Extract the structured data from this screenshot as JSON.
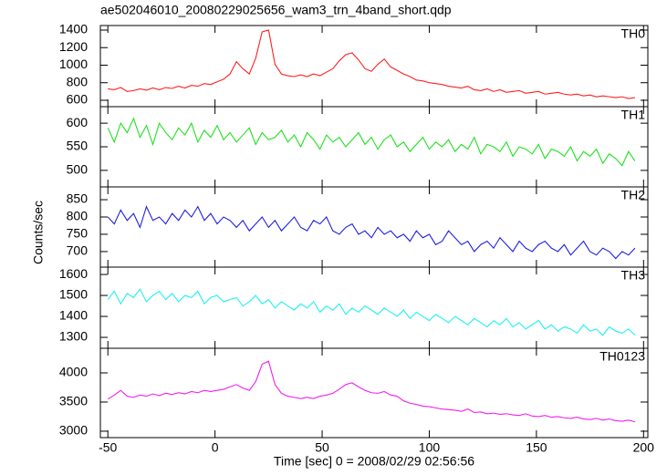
{
  "chart_data": {
    "type": "line",
    "title": "ae502046010_20080229025656_wam3_trn_4band_short.qdp",
    "x_label": "Time [sec] 0 = 2008/02/29 02:56:56",
    "y_label": "Counts/sec",
    "xlim": [
      -53.5,
      202
    ],
    "xticks": [
      -50,
      0,
      50,
      100,
      150,
      200
    ],
    "x": [
      -50,
      -47,
      -44,
      -41,
      -38,
      -35,
      -32,
      -29,
      -26,
      -23,
      -20,
      -17,
      -14,
      -11,
      -8,
      -5,
      -2,
      1,
      4,
      7,
      10,
      13,
      16,
      19,
      22,
      25,
      28,
      31,
      34,
      37,
      40,
      43,
      46,
      49,
      52,
      55,
      58,
      61,
      64,
      67,
      70,
      73,
      76,
      79,
      82,
      85,
      88,
      91,
      94,
      97,
      100,
      103,
      106,
      109,
      112,
      115,
      118,
      121,
      124,
      127,
      130,
      133,
      136,
      139,
      142,
      145,
      148,
      151,
      154,
      157,
      160,
      163,
      166,
      169,
      172,
      175,
      178,
      181,
      184,
      187,
      190,
      193,
      196
    ],
    "series": [
      {
        "name": "TH0",
        "color": "#ff2020",
        "ylim": [
          527,
          1452
        ],
        "yticks": [
          600,
          800,
          1000,
          1200,
          1400
        ],
        "values": [
          730,
          720,
          745,
          700,
          710,
          730,
          715,
          740,
          720,
          745,
          735,
          760,
          740,
          770,
          760,
          790,
          780,
          810,
          840,
          900,
          1040,
          960,
          900,
          1080,
          1380,
          1400,
          1010,
          900,
          880,
          870,
          890,
          870,
          900,
          880,
          920,
          960,
          1050,
          1120,
          1140,
          1060,
          960,
          930,
          1010,
          1070,
          980,
          940,
          900,
          870,
          830,
          820,
          800,
          790,
          780,
          760,
          750,
          740,
          760,
          720,
          710,
          730,
          700,
          720,
          690,
          700,
          710,
          680,
          690,
          700,
          670,
          680,
          690,
          670,
          660,
          670,
          650,
          660,
          640,
          650,
          640,
          630,
          640,
          620,
          630
        ]
      },
      {
        "name": "TH1",
        "color": "#20e020",
        "ylim": [
          465,
          635
        ],
        "yticks": [
          500,
          550,
          600
        ],
        "values": [
          590,
          560,
          600,
          580,
          610,
          570,
          595,
          555,
          600,
          580,
          565,
          590,
          575,
          600,
          560,
          585,
          570,
          595,
          565,
          580,
          560,
          575,
          590,
          555,
          580,
          565,
          570,
          585,
          560,
          575,
          550,
          580,
          565,
          545,
          575,
          560,
          570,
          550,
          565,
          580,
          555,
          570,
          545,
          565,
          575,
          550,
          560,
          540,
          555,
          570,
          545,
          560,
          550,
          565,
          540,
          555,
          545,
          570,
          535,
          555,
          550,
          540,
          560,
          530,
          550,
          545,
          535,
          555,
          525,
          545,
          540,
          530,
          550,
          520,
          540,
          530,
          545,
          515,
          535,
          525,
          510,
          540,
          520
        ]
      },
      {
        "name": "TH2",
        "color": "#2020e0",
        "ylim": [
          655,
          887
        ],
        "yticks": [
          700,
          750,
          800,
          850
        ],
        "values": [
          800,
          780,
          820,
          790,
          810,
          770,
          830,
          790,
          800,
          780,
          810,
          790,
          820,
          800,
          830,
          790,
          810,
          780,
          800,
          790,
          770,
          790,
          760,
          780,
          800,
          770,
          790,
          760,
          780,
          800,
          770,
          760,
          790,
          780,
          800,
          760,
          750,
          770,
          780,
          750,
          760,
          740,
          770,
          750,
          760,
          740,
          750,
          730,
          760,
          740,
          750,
          720,
          730,
          760,
          740,
          720,
          730,
          700,
          720,
          730,
          710,
          740,
          720,
          700,
          730,
          710,
          700,
          720,
          730,
          710,
          700,
          720,
          690,
          710,
          730,
          700,
          690,
          710,
          700,
          680,
          700,
          690,
          710
        ]
      },
      {
        "name": "TH3",
        "color": "#20f0f0",
        "ylim": [
          1248,
          1635
        ],
        "yticks": [
          1300,
          1400,
          1500,
          1600
        ],
        "values": [
          1480,
          1520,
          1460,
          1510,
          1490,
          1530,
          1470,
          1500,
          1520,
          1480,
          1510,
          1470,
          1500,
          1490,
          1520,
          1460,
          1490,
          1500,
          1470,
          1480,
          1490,
          1450,
          1470,
          1500,
          1460,
          1480,
          1440,
          1470,
          1450,
          1430,
          1460,
          1440,
          1470,
          1420,
          1450,
          1430,
          1460,
          1410,
          1440,
          1420,
          1450,
          1430,
          1410,
          1440,
          1420,
          1400,
          1430,
          1390,
          1420,
          1400,
          1380,
          1410,
          1390,
          1370,
          1400,
          1380,
          1360,
          1390,
          1370,
          1350,
          1380,
          1360,
          1390,
          1350,
          1370,
          1340,
          1360,
          1380,
          1340,
          1360,
          1330,
          1350,
          1340,
          1320,
          1360,
          1330,
          1340,
          1310,
          1350,
          1330,
          1320,
          1340,
          1310
        ]
      },
      {
        "name": "TH0123",
        "color": "#f020f0",
        "ylim": [
          2890,
          4422
        ],
        "yticks": [
          3000,
          3500,
          4000
        ],
        "values": [
          3550,
          3620,
          3700,
          3600,
          3580,
          3620,
          3600,
          3640,
          3610,
          3650,
          3630,
          3660,
          3640,
          3680,
          3660,
          3700,
          3680,
          3700,
          3720,
          3760,
          3800,
          3740,
          3700,
          3850,
          4150,
          4200,
          3800,
          3650,
          3600,
          3580,
          3560,
          3580,
          3560,
          3600,
          3620,
          3650,
          3720,
          3800,
          3830,
          3760,
          3700,
          3660,
          3650,
          3680,
          3620,
          3600,
          3520,
          3480,
          3460,
          3430,
          3420,
          3400,
          3380,
          3370,
          3360,
          3340,
          3380,
          3320,
          3330,
          3300,
          3310,
          3290,
          3300,
          3280,
          3270,
          3300,
          3260,
          3250,
          3270,
          3240,
          3250,
          3230,
          3220,
          3240,
          3210,
          3200,
          3220,
          3190,
          3210,
          3180,
          3170,
          3190,
          3160
        ]
      }
    ]
  }
}
